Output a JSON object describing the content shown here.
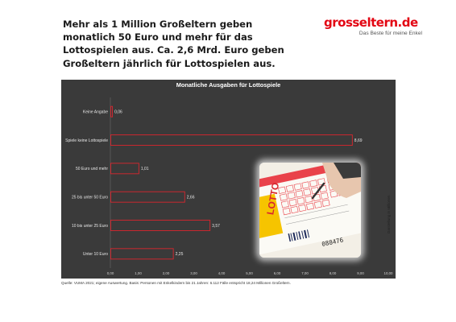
{
  "headline": "Mehr als 1 Million Großeltern geben monatlich 50 Euro und mehr für das Lottospielen aus. Ca. 2,6 Mrd. Euro geben Großeltern jährlich für Lottospielen aus.",
  "logo": {
    "name": "grosseltern",
    "tld": ".de",
    "tagline": "Das Beste für meine Enkel"
  },
  "photo": {
    "brand_text": "LOTTO",
    "ticket_number": "088476"
  },
  "colors": {
    "chart_background": "#3a3a3a",
    "bar_outline": "#d9262e",
    "accent": "#e30613"
  },
  "side_note": "Darstellung in Millionen",
  "source": "Quelle: VUMA 2021; eigene Auswertung. Basis: Personen mit Enkelkindern bis 21 Jahren: 6.112 Fälle entspricht 18,24 Millionen Großeltern.",
  "chart_data": {
    "type": "bar",
    "orientation": "horizontal",
    "title": "Monatliche Ausgaben für Lottospiele",
    "categories": [
      "Keine Angabe",
      "Spiele keine Lottospiele",
      "50 Euro und mehr",
      "25 bis unter 50 Euro",
      "10 bis unter 25 Euro",
      "Unter 10 Euro"
    ],
    "values": [
      0.06,
      8.69,
      1.01,
      2.66,
      3.57,
      2.25
    ],
    "value_labels": [
      "0,06",
      "8,69",
      "1,01",
      "2,66",
      "3,57",
      "2,25"
    ],
    "xlim": [
      0,
      10
    ],
    "xticks": [
      "0,00",
      "1,00",
      "2,00",
      "3,00",
      "4,00",
      "5,00",
      "6,00",
      "7,00",
      "8,00",
      "9,00",
      "10,00"
    ],
    "grid": false,
    "legend": "none"
  }
}
